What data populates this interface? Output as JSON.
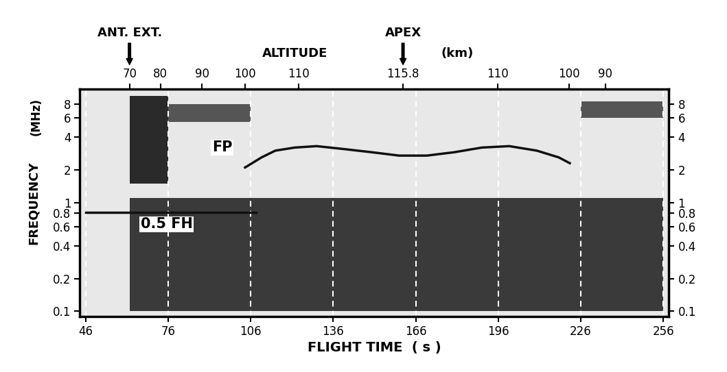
{
  "chart_data": {
    "type": "spectrogram",
    "x_label": "FLIGHT TIME  ( s )",
    "y_label": "FREQUENCY",
    "y_units_label": "(MHz)",
    "x2_label": "ALTITUDE",
    "x2_units_label": "(km)",
    "xlim": [
      44,
      258
    ],
    "xticks": [
      46,
      76,
      106,
      136,
      166,
      196,
      226,
      256
    ],
    "ylim": [
      0.09,
      11
    ],
    "yticks": [
      0.1,
      0.2,
      0.4,
      0.6,
      0.8,
      1,
      2,
      4,
      6,
      8
    ],
    "y2lim": [
      0.09,
      11
    ],
    "y2ticks": [
      0.1,
      0.2,
      0.4,
      0.6,
      0.8,
      1,
      2,
      4,
      6,
      8
    ],
    "x2ticks": [
      {
        "value": 62,
        "label": "70"
      },
      {
        "value": 73.2,
        "label": "80"
      },
      {
        "value": 88.4,
        "label": "90"
      },
      {
        "value": 104,
        "label": "100"
      },
      {
        "value": 123.4,
        "label": "110"
      },
      {
        "value": 161.4,
        "label": "115.8"
      },
      {
        "value": 195.8,
        "label": "110"
      },
      {
        "value": 221.8,
        "label": "100"
      },
      {
        "value": 234.9,
        "label": "90"
      }
    ],
    "log": "y",
    "grid": "x",
    "annotations": [
      {
        "text": "ANT. EXT.",
        "x": 62
      },
      {
        "text": "APEX",
        "x": 161.4
      }
    ],
    "bands": [
      {
        "x": [
          62,
          256
        ],
        "y": [
          0.1,
          1.1
        ],
        "color": "#3a3a3a"
      },
      {
        "x": [
          62,
          76
        ],
        "y": [
          1.5,
          9.5
        ],
        "color": "#2a2a2a"
      },
      {
        "x": [
          76,
          106
        ],
        "y": [
          5.5,
          8
        ],
        "color": "#555555"
      },
      {
        "x": [
          226,
          256
        ],
        "y": [
          6,
          8.5
        ],
        "color": "#555555"
      }
    ],
    "series": [
      {
        "name": "FP",
        "color": "#111111",
        "line_style": "solid",
        "label_x": 92,
        "label_y": 3.2,
        "x": [
          104,
          110,
          115,
          122,
          130,
          140,
          150,
          160,
          170,
          180,
          190,
          200,
          210,
          218,
          222
        ],
        "values": [
          2.1,
          2.6,
          3.0,
          3.2,
          3.3,
          3.1,
          2.9,
          2.7,
          2.7,
          2.9,
          3.2,
          3.3,
          3.0,
          2.6,
          2.3
        ]
      },
      {
        "name": "0.5 FH",
        "color": "#111111",
        "line_style": "solid",
        "label_x": 66,
        "label_y": 0.63,
        "x": [
          46,
          62,
          76,
          90,
          108
        ],
        "values": [
          0.81,
          0.81,
          0.81,
          0.81,
          0.81
        ]
      }
    ]
  }
}
